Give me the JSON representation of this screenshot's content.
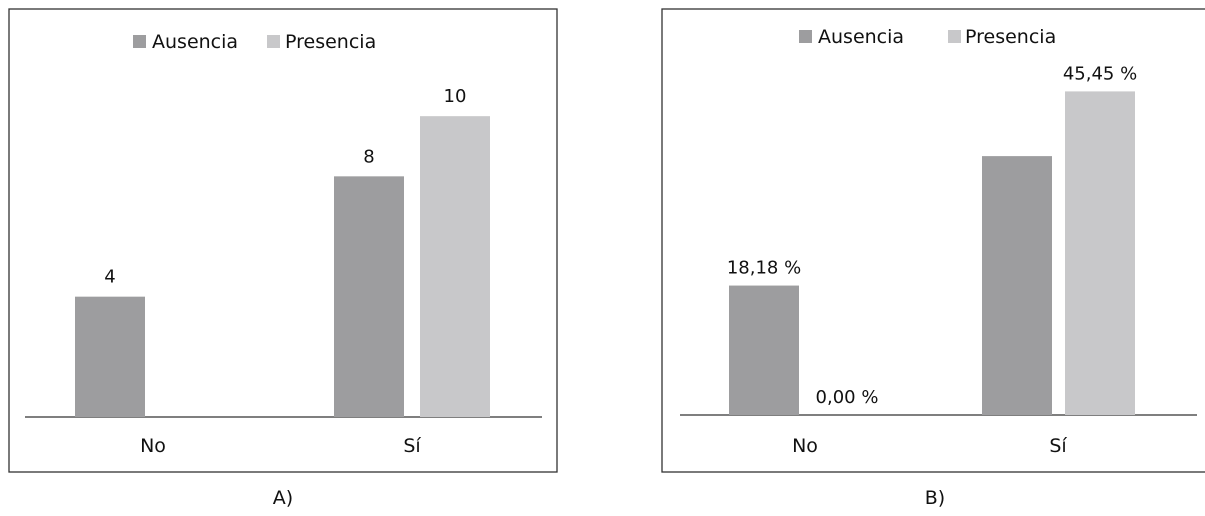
{
  "colors": {
    "ausencia": "#9d9d9f",
    "presencia": "#c8c8ca",
    "frame": "#333333",
    "axis": "#333333"
  },
  "legend": {
    "ausencia": "Ausencia",
    "presencia": "Presencia"
  },
  "chart_data": [
    {
      "type": "bar",
      "caption": "A)",
      "categories": [
        "No",
        "Sí"
      ],
      "series": [
        {
          "name": "Ausencia",
          "values": [
            4,
            8
          ],
          "labels": [
            "4",
            "8"
          ]
        },
        {
          "name": "Presencia",
          "values": [
            0,
            10
          ],
          "labels": [
            "",
            "10"
          ]
        }
      ],
      "ylim": [
        0,
        12
      ],
      "legend_position": "top-center",
      "grid": false
    },
    {
      "type": "bar",
      "caption": "B)",
      "categories": [
        "No",
        "Sí"
      ],
      "series": [
        {
          "name": "Ausencia",
          "values": [
            18.18,
            36.36
          ],
          "labels": [
            "18,18 %",
            ""
          ]
        },
        {
          "name": "Presencia",
          "values": [
            0.0,
            45.45
          ],
          "labels": [
            "0,00 %",
            "45,45 %"
          ]
        }
      ],
      "ylim": [
        0,
        50
      ],
      "legend_position": "top-center",
      "grid": false
    }
  ]
}
